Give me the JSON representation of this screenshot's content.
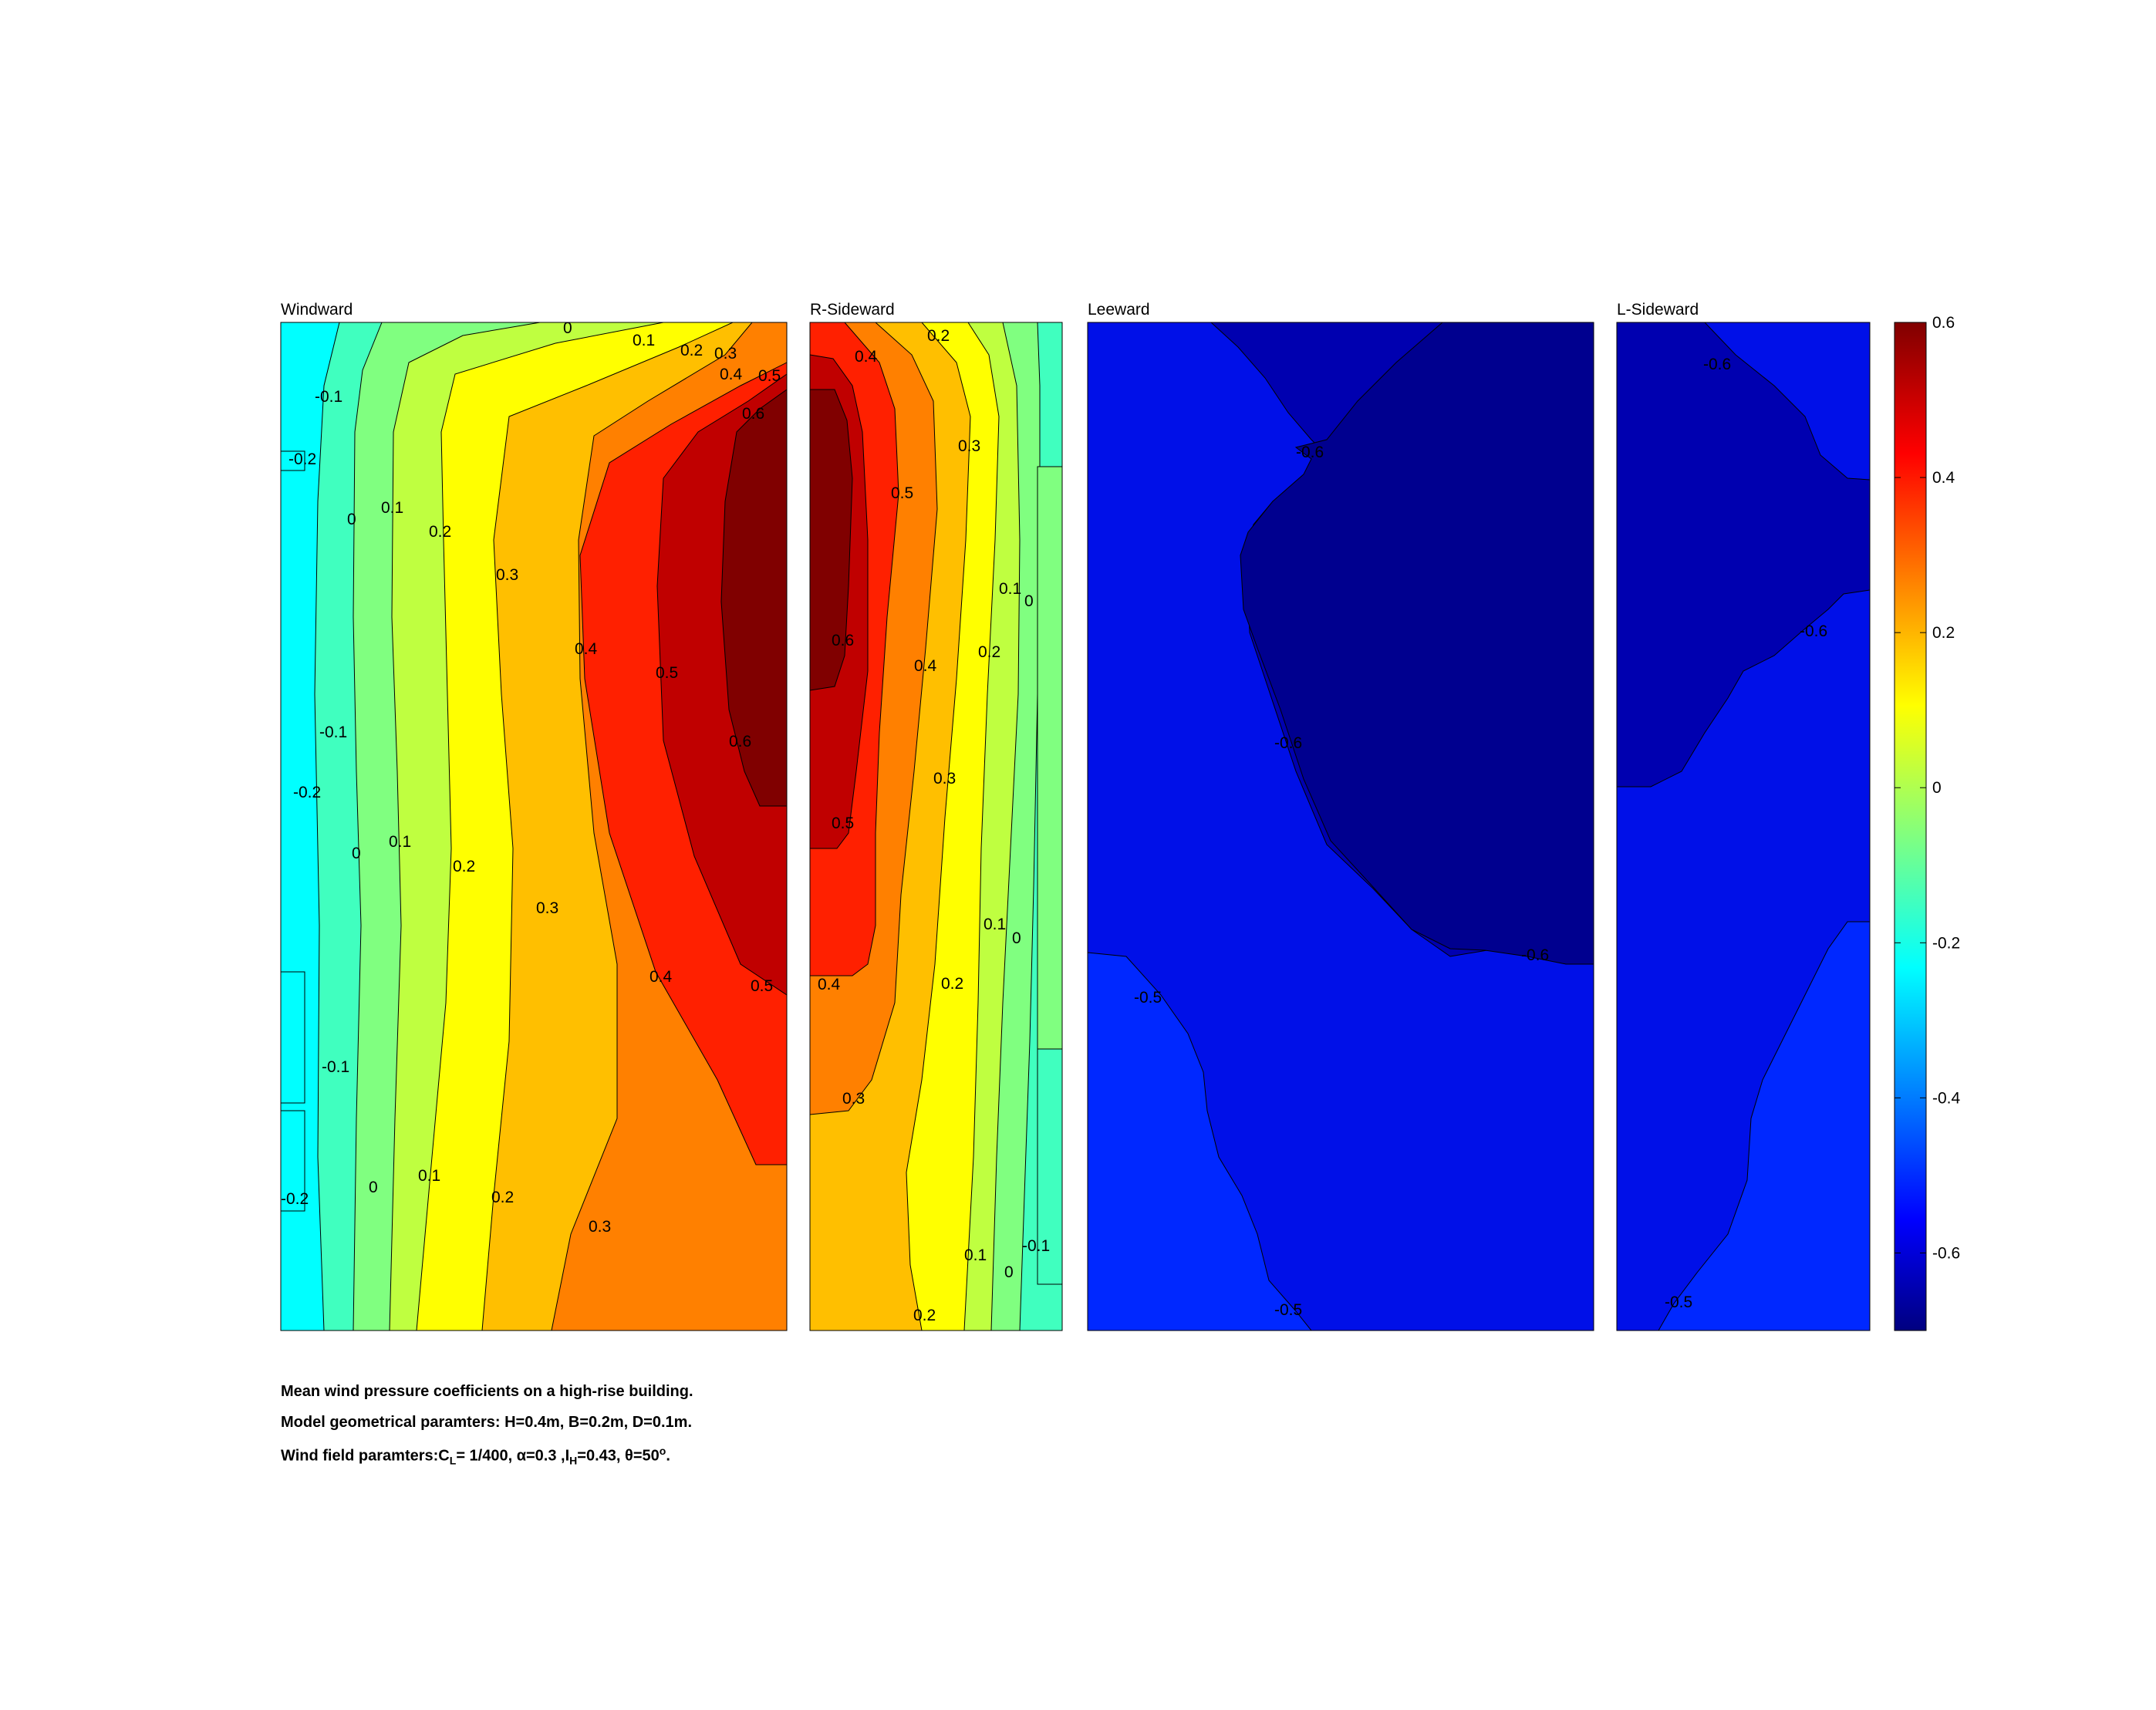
{
  "chart_data": {
    "type": "contour",
    "panels": [
      {
        "title": "Windward",
        "levels": [
          -0.2,
          -0.1,
          0,
          0.1,
          0.2,
          0.3,
          0.4,
          0.5,
          0.6
        ],
        "contour_labels": [
          "0",
          "0.1",
          "0.2",
          "0.3",
          "0.4",
          "0.5",
          "0.6",
          "-0.1",
          "-0.2",
          "0",
          "0.1",
          "0.2",
          "0.3",
          "0.4",
          "0.5",
          "0.6",
          "-0.1",
          "-0.2",
          "0",
          "0.1",
          "0.2",
          "0.3",
          "0.4",
          "0.5",
          "-0.1",
          "-0.2",
          "0",
          "0.1",
          "0.2",
          "0.3"
        ]
      },
      {
        "title": "R-Sideward",
        "levels": [
          -0.1,
          0,
          0.1,
          0.2,
          0.3,
          0.4,
          0.5,
          0.6
        ],
        "contour_labels": [
          "0.4",
          "0.2",
          "0.3",
          "0.5",
          "0.1",
          "0",
          "0.6",
          "0.4",
          "0.2",
          "0.3",
          "0.5",
          "0.1",
          "0",
          "0.4",
          "0.2",
          "0.3",
          "0.1",
          "-0.1",
          "0",
          "0.2"
        ]
      },
      {
        "title": "Leeward",
        "levels": [
          -0.6,
          -0.5
        ],
        "contour_labels": [
          "-0.6",
          "-0.6",
          "-0.6",
          "-0.5",
          "-0.5"
        ]
      },
      {
        "title": "L-Sideward",
        "levels": [
          -0.6,
          -0.5
        ],
        "contour_labels": [
          "-0.6",
          "-0.6",
          "-0.5"
        ]
      }
    ],
    "colorbar": {
      "colormap": "jet",
      "range": [
        -0.7,
        0.6
      ],
      "ticks": [
        "0.6",
        "0.4",
        "0.2",
        "0",
        "-0.2",
        "-0.4",
        "-0.6"
      ]
    },
    "caption": {
      "line1": "Mean wind pressure coefficients on a high-rise building.",
      "line2": "Model geometrical paramters: H=0.4m, B=0.2m, D=0.1m.",
      "line3_prefix": "Wind field paramters:C",
      "line3_sub_L": "L",
      "line3_mid1": "= 1/400, α=0.3 ,I",
      "line3_sub_H": "H",
      "line3_mid2": "=0.43, θ=50",
      "line3_sup": "o",
      "line3_end": "."
    }
  }
}
